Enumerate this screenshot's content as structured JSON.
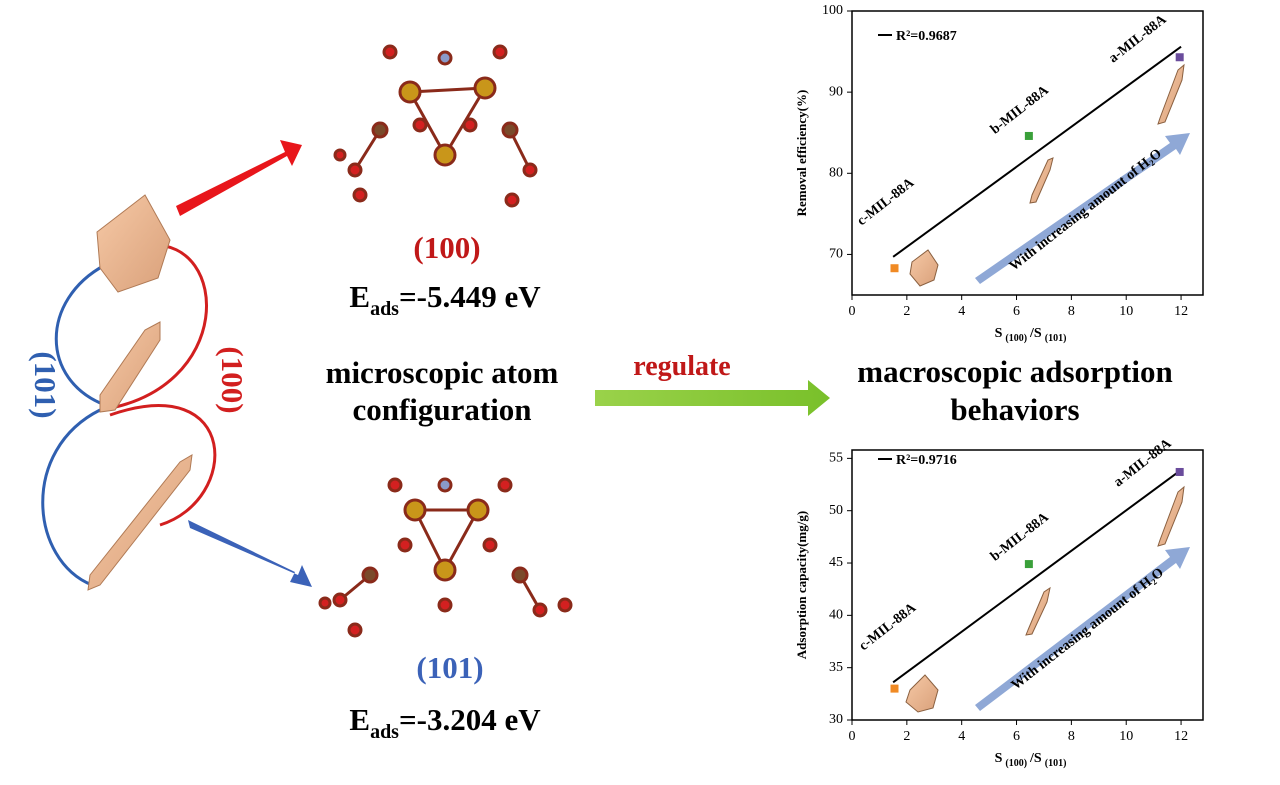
{
  "left": {
    "facet_a": "(101)",
    "facet_b": "(100)"
  },
  "structures": [
    {
      "facet": "(100)",
      "energy_symbol": "E",
      "energy_sub": "ads",
      "energy_value": "=-5.449 eV"
    },
    {
      "facet": "(101)",
      "energy_symbol": "E",
      "energy_sub": "ads",
      "energy_value": "=-3.204 eV"
    }
  ],
  "center": {
    "left_lines": [
      "microscopic atom",
      "configuration"
    ],
    "arrow_label": "regulate",
    "right_lines": [
      "macroscopic adsorption",
      "behaviors"
    ]
  },
  "chart_data": [
    {
      "type": "scatter",
      "ylabel": "Removal efficiency(%)",
      "xlabel": {
        "main1": "S",
        "sub1": "(100)",
        "main2": "/S",
        "sub2": "(101)"
      },
      "xlim": [
        0,
        12.8
      ],
      "xticks": [
        0,
        2,
        4,
        6,
        8,
        10,
        12
      ],
      "ylim": [
        65,
        100
      ],
      "yticks": [
        70,
        80,
        90,
        100
      ],
      "points": {
        "x": [
          1.55,
          6.45,
          11.95
        ],
        "values": [
          68.3,
          84.6,
          94.3
        ],
        "colors": [
          "#f08a24",
          "#3aa03a",
          "#6a4c9c"
        ]
      },
      "fit": {
        "name": "R²=0.9687",
        "color": "#000000",
        "x": [
          1.5,
          12
        ],
        "values": [
          69.7,
          95.6
        ]
      },
      "annotations": [
        "c-MIL-88A",
        "b-MIL-88A",
        "a-MIL-88A",
        "With increasing amount of H₂O"
      ]
    },
    {
      "type": "scatter",
      "ylabel": "Adsorption capacity(mg/g)",
      "xlabel": {
        "main1": "S",
        "sub1": "(100)",
        "main2": "/S",
        "sub2": "(101)"
      },
      "xlim": [
        0,
        12.8
      ],
      "xticks": [
        0,
        2,
        4,
        6,
        8,
        10,
        12
      ],
      "ylim": [
        30,
        55.8
      ],
      "yticks": [
        30,
        35,
        40,
        45,
        50,
        55
      ],
      "points": {
        "x": [
          1.55,
          6.45,
          11.95
        ],
        "values": [
          33.0,
          44.9,
          53.7
        ],
        "colors": [
          "#f08a24",
          "#3aa03a",
          "#6a4c9c"
        ]
      },
      "fit": {
        "name": "R²=0.9716",
        "color": "#000000",
        "x": [
          1.5,
          12
        ],
        "values": [
          33.6,
          53.9
        ]
      },
      "annotations": [
        "c-MIL-88A",
        "b-MIL-88A",
        "a-MIL-88A",
        "With increasing amount of H₂O"
      ]
    }
  ]
}
